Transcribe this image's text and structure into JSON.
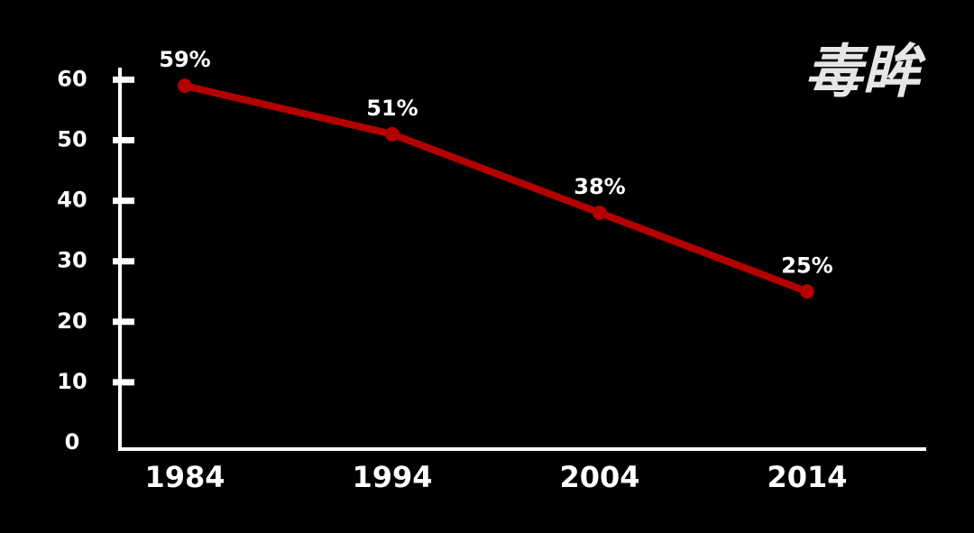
{
  "chart_data": {
    "type": "line",
    "watermark": "毒眸",
    "categories": [
      "1984",
      "1994",
      "2004",
      "2014"
    ],
    "series": [
      {
        "color": "#b30000",
        "values": [
          59,
          51,
          38,
          25
        ],
        "value_labels": [
          "59%",
          "51%",
          "38%",
          "25%"
        ]
      }
    ],
    "ylim": [
      0,
      62
    ],
    "yticks": [
      0,
      10,
      20,
      30,
      40,
      50,
      60
    ]
  }
}
